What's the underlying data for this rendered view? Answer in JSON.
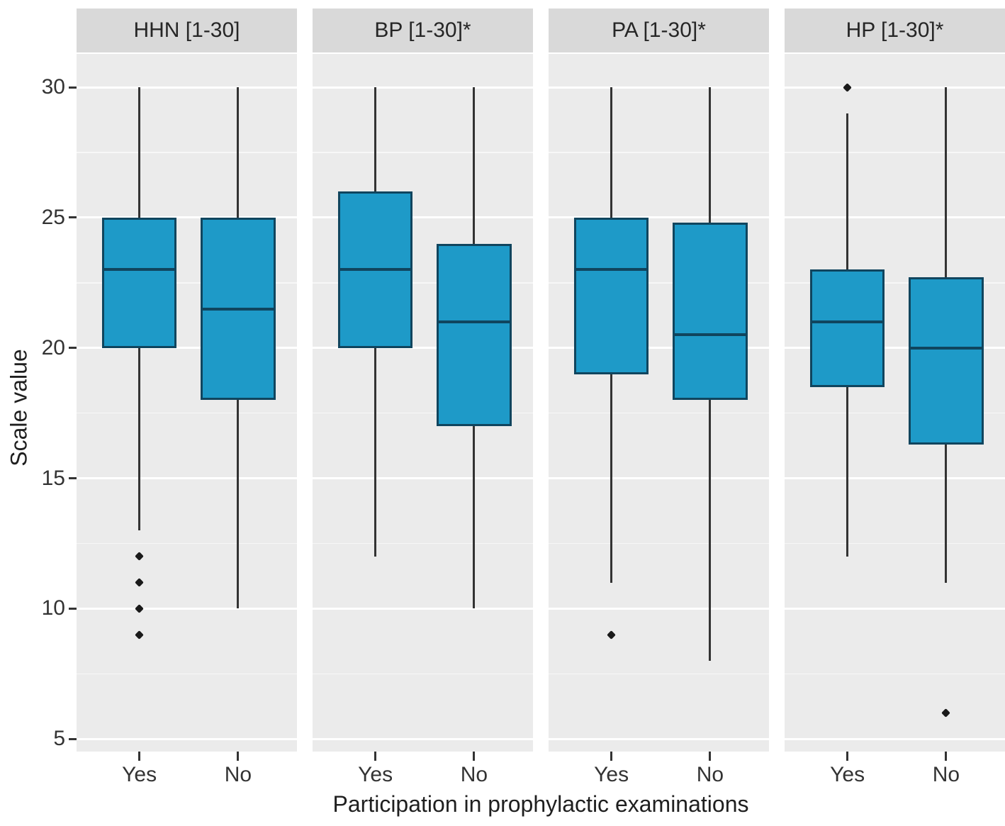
{
  "chart_data": {
    "type": "boxplot",
    "title": "",
    "xlabel": "Participation in prophylactic examinations",
    "ylabel": "Scale value",
    "categories": [
      "Yes",
      "No"
    ],
    "y_axis": {
      "ticks": [
        30,
        25,
        20,
        15,
        10,
        5
      ],
      "minor_gridlines": [
        27.5,
        22.5,
        17.5,
        12.5,
        7.5
      ],
      "range": [
        4.52,
        31.28
      ],
      "grid": true
    },
    "legend": null,
    "facets": [
      {
        "label": "HHN [1-30]",
        "boxes": [
          {
            "category": "Yes",
            "whisker_low": 13,
            "q1": 20,
            "median": 23,
            "q3": 25,
            "whisker_high": 30,
            "outliers": [
              12,
              11,
              10,
              9
            ]
          },
          {
            "category": "No",
            "whisker_low": 10,
            "q1": 18,
            "median": 21.5,
            "q3": 25,
            "whisker_high": 30,
            "outliers": []
          }
        ]
      },
      {
        "label": "BP [1-30]*",
        "boxes": [
          {
            "category": "Yes",
            "whisker_low": 12,
            "q1": 20,
            "median": 23,
            "q3": 26,
            "whisker_high": 30,
            "outliers": []
          },
          {
            "category": "No",
            "whisker_low": 10,
            "q1": 17,
            "median": 21,
            "q3": 24,
            "whisker_high": 30,
            "outliers": []
          }
        ]
      },
      {
        "label": "PA [1-30]*",
        "boxes": [
          {
            "category": "Yes",
            "whisker_low": 11,
            "q1": 19,
            "median": 23,
            "q3": 25,
            "whisker_high": 30,
            "outliers": [
              9
            ]
          },
          {
            "category": "No",
            "whisker_low": 8,
            "q1": 18,
            "median": 20.5,
            "q3": 24.8,
            "whisker_high": 30,
            "outliers": []
          }
        ]
      },
      {
        "label": "HP [1-30]*",
        "boxes": [
          {
            "category": "Yes",
            "whisker_low": 12,
            "q1": 18.5,
            "median": 21,
            "q3": 23,
            "whisker_high": 29,
            "outliers": [
              30
            ]
          },
          {
            "category": "No",
            "whisker_low": 11,
            "q1": 16.3,
            "median": 20,
            "q3": 22.7,
            "whisker_high": 30,
            "outliers": [
              6
            ]
          }
        ]
      }
    ],
    "colors": {
      "box_fill": "#1e9ac8",
      "box_border": "#10455e",
      "whisker": "#333333",
      "outlier": "#1a1a1a",
      "panel_bg": "#ebebeb",
      "strip_bg": "#d9d9d9",
      "grid_major": "#ffffff",
      "axis_text": "#333333"
    }
  }
}
